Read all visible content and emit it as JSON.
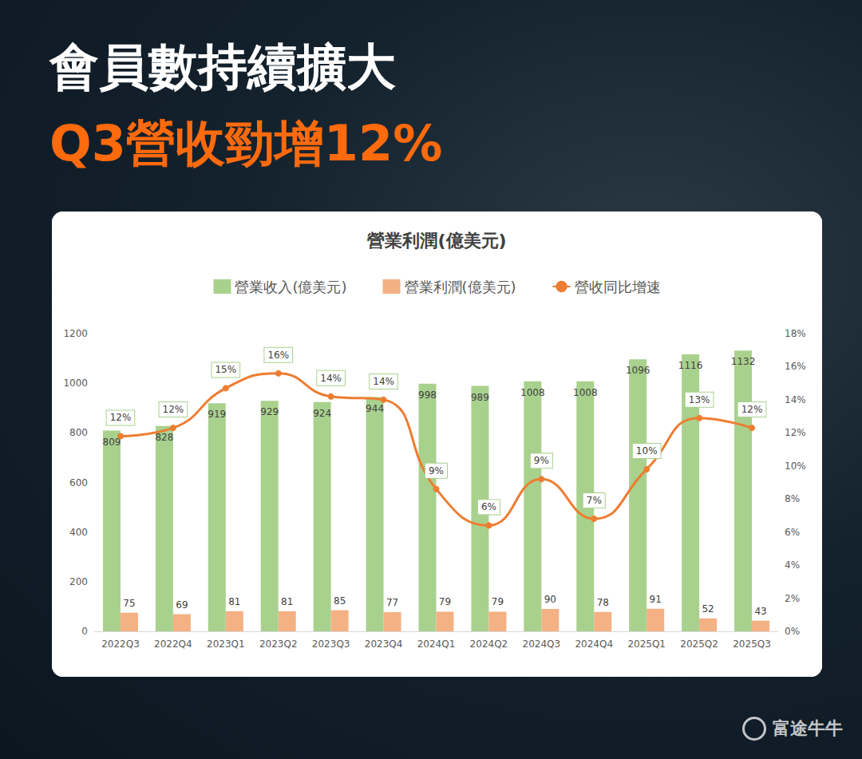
{
  "header": {
    "lines": [
      "會員數持續擴大",
      "Q3營收勁增12%"
    ]
  },
  "watermark": "富途牛牛",
  "chart_data": {
    "type": "bar",
    "title": "營業利潤(億美元)",
    "categories": [
      "2022Q3",
      "2022Q4",
      "2023Q1",
      "2023Q2",
      "2023Q3",
      "2023Q4",
      "2024Q1",
      "2024Q2",
      "2024Q3",
      "2024Q4",
      "2025Q1",
      "2025Q2",
      "2025Q3"
    ],
    "series": [
      {
        "name": "營業收入(億美元)",
        "type": "bar",
        "color": "#a9d18e",
        "data_labels": true,
        "values": [
          809,
          828,
          919,
          929,
          924,
          944,
          998,
          989,
          1008,
          1008,
          1096,
          1116,
          1132
        ]
      },
      {
        "name": "營業利潤(億美元)",
        "type": "bar",
        "color": "#f4b183",
        "data_labels": true,
        "values": [
          75,
          69,
          81,
          81,
          85,
          77,
          79,
          79,
          90,
          78,
          91,
          52,
          43
        ]
      },
      {
        "name": "營收同比增速",
        "type": "line",
        "axis": "y2",
        "color": "#ed7d31",
        "marker": "circle",
        "line_style": "smooth",
        "data_labels": true,
        "values": [
          11.8,
          12.3,
          14.7,
          15.6,
          14.2,
          14.0,
          8.6,
          6.4,
          9.2,
          6.8,
          9.8,
          12.9,
          12.3
        ],
        "value_labels": [
          "12%",
          "12%",
          "15%",
          "16%",
          "14%",
          "14%",
          "9%",
          "6%",
          "9%",
          "7%",
          "10%",
          "13%",
          "12%"
        ]
      }
    ],
    "ylim": [
      0,
      1200
    ],
    "yticks": [
      0,
      200,
      400,
      600,
      800,
      1000,
      1200
    ],
    "y2lim": [
      0,
      18
    ],
    "y2ticks": [
      {
        "value": 0,
        "label": "0%"
      },
      {
        "value": 2,
        "label": "2%"
      },
      {
        "value": 4,
        "label": "4%"
      },
      {
        "value": 6,
        "label": "6%"
      },
      {
        "value": 8,
        "label": "8%"
      },
      {
        "value": 10,
        "label": "10%"
      },
      {
        "value": 12,
        "label": "12%"
      },
      {
        "value": 14,
        "label": "14%"
      },
      {
        "value": 16,
        "label": "16%"
      },
      {
        "value": 18,
        "label": "18%"
      }
    ],
    "grid": false,
    "legend": "top"
  }
}
